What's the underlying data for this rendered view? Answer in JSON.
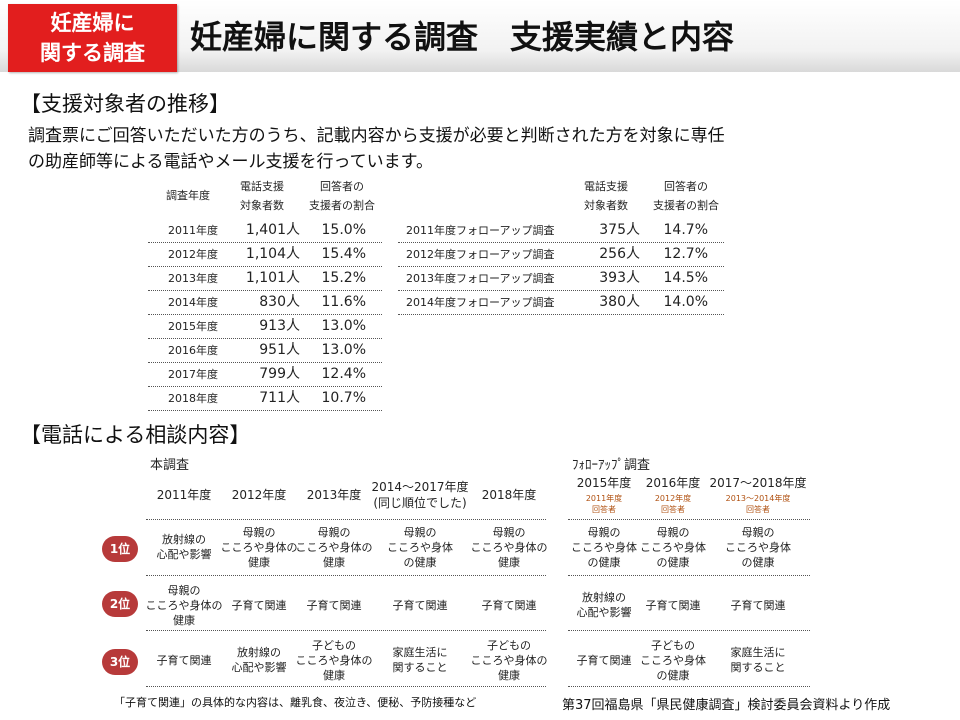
{
  "header": {
    "badge_line1": "妊産婦に",
    "badge_line2": "関する調査",
    "title": "妊産婦に関する調査　支援実績と内容"
  },
  "section1": {
    "heading": "【支援対象者の推移】",
    "intro_line1": "調査票にご回答いただいた方のうち、記載内容から支援が必要と判断された方を対象に専任",
    "intro_line2": "の助産師等による電話やメール支援を行っています。"
  },
  "main_table": {
    "col_year": "調査年度",
    "col_count_l1": "電話支援",
    "col_count_l2": "対象者数",
    "col_ratio_l1": "回答者の",
    "col_ratio_l2": "支援者の割合",
    "rows": [
      {
        "year": "2011年度",
        "count": "1,401人",
        "ratio": "15.0%"
      },
      {
        "year": "2012年度",
        "count": "1,104人",
        "ratio": "15.4%"
      },
      {
        "year": "2013年度",
        "count": "1,101人",
        "ratio": "15.2%"
      },
      {
        "year": "2014年度",
        "count": "830人",
        "ratio": "11.6%"
      },
      {
        "year": "2015年度",
        "count": "913人",
        "ratio": "13.0%"
      },
      {
        "year": "2016年度",
        "count": "951人",
        "ratio": "13.0%"
      },
      {
        "year": "2017年度",
        "count": "799人",
        "ratio": "12.4%"
      },
      {
        "year": "2018年度",
        "count": "711人",
        "ratio": "10.7%"
      }
    ]
  },
  "followup_table": {
    "col_count_l1": "電話支援",
    "col_count_l2": "対象者数",
    "col_ratio_l1": "回答者の",
    "col_ratio_l2": "支援者の割合",
    "rows": [
      {
        "year": "2011年度フォローアップ調査",
        "count": "375人",
        "ratio": "14.7%"
      },
      {
        "year": "2012年度フォローアップ調査",
        "count": "256人",
        "ratio": "12.7%"
      },
      {
        "year": "2013年度フォローアップ調査",
        "count": "393人",
        "ratio": "14.5%"
      },
      {
        "year": "2014年度フォローアップ調査",
        "count": "380人",
        "ratio": "14.0%"
      }
    ]
  },
  "section2": {
    "heading": "【電話による相談内容】",
    "main_label": "本調査",
    "followup_label": "ﾌｫﾛｰｱｯﾌﾟ調査"
  },
  "consult_main": {
    "years": [
      {
        "l1": "2011年度",
        "l2": ""
      },
      {
        "l1": "2012年度",
        "l2": ""
      },
      {
        "l1": "2013年度",
        "l2": ""
      },
      {
        "l1": "2014～2017年度",
        "l2": "(同じ順位でした)"
      },
      {
        "l1": "2018年度",
        "l2": ""
      }
    ],
    "ranks": [
      "1位",
      "2位",
      "3位"
    ],
    "cells": [
      [
        [
          "放射線の",
          "心配や影響"
        ],
        [
          "母親の",
          "こころや身体の",
          "健康"
        ],
        [
          "母親の",
          "こころや身体の",
          "健康"
        ],
        [
          "母親の",
          "こころや身体",
          "の健康"
        ],
        [
          "母親の",
          "こころや身体の",
          "健康"
        ]
      ],
      [
        [
          "母親の",
          "こころや身体の",
          "健康"
        ],
        [
          "子育て関連"
        ],
        [
          "子育て関連"
        ],
        [
          "子育て関連"
        ],
        [
          "子育て関連"
        ]
      ],
      [
        [
          "子育て関連"
        ],
        [
          "放射線の",
          "心配や影響"
        ],
        [
          "子どもの",
          "こころや身体の",
          "健康"
        ],
        [
          "家庭生活に",
          "関すること"
        ],
        [
          "子どもの",
          "こころや身体の",
          "健康"
        ]
      ]
    ]
  },
  "consult_followup": {
    "years": [
      {
        "l1": "2015年度",
        "sub1": "2011年度",
        "sub2": "回答者"
      },
      {
        "l1": "2016年度",
        "sub1": "2012年度",
        "sub2": "回答者"
      },
      {
        "l1": "2017～2018年度",
        "sub1": "2013～2014年度",
        "sub2": "回答者"
      }
    ],
    "cells": [
      [
        [
          "母親の",
          "こころや身体",
          "の健康"
        ],
        [
          "母親の",
          "こころや身体",
          "の健康"
        ],
        [
          "母親の",
          "こころや身体",
          "の健康"
        ]
      ],
      [
        [
          "放射線の",
          "心配や影響"
        ],
        [
          "子育て関連"
        ],
        [
          "子育て関連"
        ]
      ],
      [
        [
          "子育て関連"
        ],
        [
          "子どもの",
          "こころや身体",
          "の健康"
        ],
        [
          "家庭生活に",
          "関すること"
        ]
      ]
    ]
  },
  "footer": {
    "note": "「子育て関連」の具体的な内容は、離乳食、夜泣き、便秘、予防接種など",
    "source": "第37回福島県「県民健康調査」検討委員会資料より作成"
  },
  "colors": {
    "badge": "#e21e1e",
    "rank": "#b73a3a",
    "sub": "#b05010"
  }
}
